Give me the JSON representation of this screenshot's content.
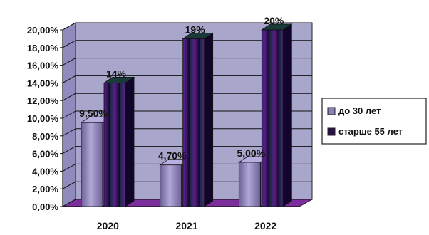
{
  "chart_data": {
    "type": "bar",
    "title": "",
    "xlabel": "",
    "ylabel": "",
    "categories": [
      "2020",
      "2021",
      "2022"
    ],
    "ylim": [
      0,
      20
    ],
    "yticks": [
      "0,00%",
      "2,00%",
      "4,00%",
      "6,00%",
      "8,00%",
      "10,00%",
      "12,00%",
      "14,00%",
      "16,00%",
      "18,00%",
      "20,00%"
    ],
    "series": [
      {
        "name": "до 30 лет",
        "values": [
          9.5,
          4.7,
          5.0
        ],
        "labels": [
          "9,50%",
          "4,70%",
          "5,00%"
        ],
        "color": "#8e80b8"
      },
      {
        "name": "старше 55 лет",
        "values": [
          14,
          19,
          20
        ],
        "labels": [
          "14%",
          "19%",
          "20%"
        ],
        "color": "#2a1048"
      }
    ],
    "legend_position": "right",
    "grid": true,
    "style": "3d-columns",
    "colors": {
      "wall": "#a9a6cc",
      "grid": "#111111",
      "series2_glow": "#7a2aa0"
    }
  }
}
